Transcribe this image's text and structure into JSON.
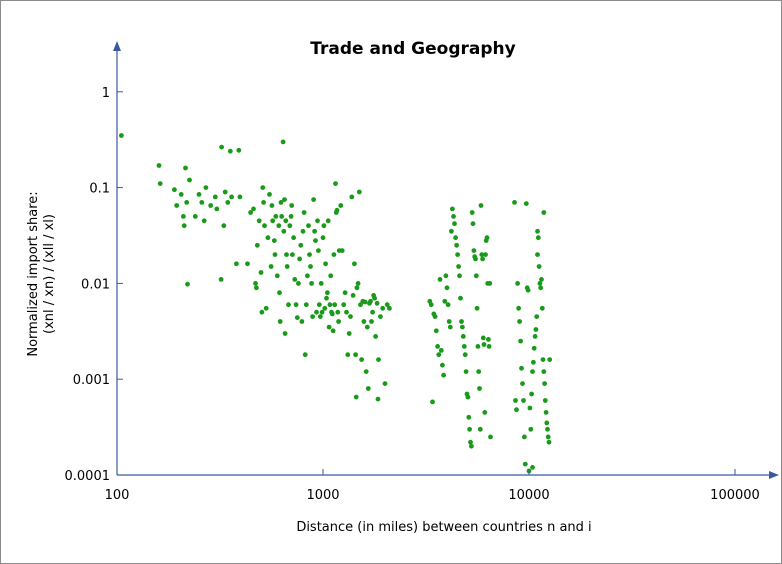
{
  "chart_data": {
    "type": "scatter",
    "title": "Trade and Geography",
    "xlabel": "Distance (in miles) between countries n and i",
    "ylabel_line1": "Normalized import share:",
    "ylabel_line2": "(xnl / xn) / (xll / xl)",
    "x_scale": "log",
    "y_scale": "log",
    "xlim": [
      100,
      200000
    ],
    "ylim": [
      0.0001,
      7
    ],
    "x_ticks": [
      {
        "value": 100,
        "label": "100"
      },
      {
        "value": 1000,
        "label": "1000"
      },
      {
        "value": 10000,
        "label": "10000"
      },
      {
        "value": 100000,
        "label": "100000"
      }
    ],
    "y_ticks": [
      {
        "value": 0.0001,
        "label": "0.0001"
      },
      {
        "value": 0.001,
        "label": "0.001"
      },
      {
        "value": 0.01,
        "label": "0.01"
      },
      {
        "value": 0.1,
        "label": "0.1"
      },
      {
        "value": 1,
        "label": "1"
      }
    ],
    "grid": false,
    "legend": "none",
    "colors": {
      "points": "#1a9a1a",
      "axis": "#3a5aa0"
    },
    "points": [
      [
        105,
        0.35
      ],
      [
        160,
        0.17
      ],
      [
        162,
        0.11
      ],
      [
        190,
        0.095
      ],
      [
        195,
        0.065
      ],
      [
        205,
        0.085
      ],
      [
        210,
        0.05
      ],
      [
        212,
        0.04
      ],
      [
        215,
        0.16
      ],
      [
        218,
        0.07
      ],
      [
        220,
        0.0098
      ],
      [
        225,
        0.12
      ],
      [
        240,
        0.05
      ],
      [
        250,
        0.085
      ],
      [
        258,
        0.07
      ],
      [
        265,
        0.045
      ],
      [
        270,
        0.1
      ],
      [
        285,
        0.065
      ],
      [
        300,
        0.08
      ],
      [
        305,
        0.06
      ],
      [
        320,
        0.011
      ],
      [
        322,
        0.265
      ],
      [
        330,
        0.04
      ],
      [
        335,
        0.09
      ],
      [
        345,
        0.07
      ],
      [
        355,
        0.24
      ],
      [
        360,
        0.08
      ],
      [
        380,
        0.016
      ],
      [
        390,
        0.245
      ],
      [
        395,
        0.08
      ],
      [
        430,
        0.016
      ],
      [
        445,
        0.055
      ],
      [
        460,
        0.06
      ],
      [
        470,
        0.01
      ],
      [
        475,
        0.009
      ],
      [
        480,
        0.025
      ],
      [
        490,
        0.045
      ],
      [
        500,
        0.013
      ],
      [
        505,
        0.005
      ],
      [
        510,
        0.1
      ],
      [
        515,
        0.07
      ],
      [
        520,
        0.04
      ],
      [
        530,
        0.0055
      ],
      [
        540,
        0.03
      ],
      [
        550,
        0.085
      ],
      [
        560,
        0.015
      ],
      [
        565,
        0.065
      ],
      [
        570,
        0.045
      ],
      [
        580,
        0.028
      ],
      [
        585,
        0.02
      ],
      [
        590,
        0.05
      ],
      [
        600,
        0.012
      ],
      [
        610,
        0.04
      ],
      [
        615,
        0.008
      ],
      [
        620,
        0.004
      ],
      [
        625,
        0.07
      ],
      [
        630,
        0.05
      ],
      [
        640,
        0.3
      ],
      [
        645,
        0.035
      ],
      [
        650,
        0.075
      ],
      [
        655,
        0.003
      ],
      [
        660,
        0.045
      ],
      [
        665,
        0.02
      ],
      [
        670,
        0.015
      ],
      [
        680,
        0.006
      ],
      [
        690,
        0.04
      ],
      [
        700,
        0.05
      ],
      [
        705,
        0.065
      ],
      [
        710,
        0.02
      ],
      [
        720,
        0.03
      ],
      [
        730,
        0.011
      ],
      [
        740,
        0.006
      ],
      [
        750,
        0.0044
      ],
      [
        760,
        0.01
      ],
      [
        770,
        0.018
      ],
      [
        780,
        0.025
      ],
      [
        790,
        0.004
      ],
      [
        800,
        0.035
      ],
      [
        810,
        0.055
      ],
      [
        820,
        0.0018
      ],
      [
        830,
        0.006
      ],
      [
        840,
        0.012
      ],
      [
        850,
        0.04
      ],
      [
        860,
        0.02
      ],
      [
        870,
        0.015
      ],
      [
        880,
        0.01
      ],
      [
        890,
        0.0045
      ],
      [
        900,
        0.075
      ],
      [
        910,
        0.035
      ],
      [
        920,
        0.028
      ],
      [
        930,
        0.005
      ],
      [
        940,
        0.045
      ],
      [
        950,
        0.022
      ],
      [
        960,
        0.006
      ],
      [
        970,
        0.0045
      ],
      [
        980,
        0.01
      ],
      [
        990,
        0.005
      ],
      [
        1000,
        0.03
      ],
      [
        1010,
        0.04
      ],
      [
        1020,
        0.0055
      ],
      [
        1030,
        0.016
      ],
      [
        1040,
        0.007
      ],
      [
        1050,
        0.008
      ],
      [
        1060,
        0.045
      ],
      [
        1070,
        0.0035
      ],
      [
        1080,
        0.006
      ],
      [
        1090,
        0.012
      ],
      [
        1100,
        0.005
      ],
      [
        1110,
        0.0048
      ],
      [
        1120,
        0.0032
      ],
      [
        1130,
        0.02
      ],
      [
        1140,
        0.006
      ],
      [
        1150,
        0.11
      ],
      [
        1160,
        0.055
      ],
      [
        1170,
        0.058
      ],
      [
        1180,
        0.005
      ],
      [
        1190,
        0.004
      ],
      [
        1200,
        0.022
      ],
      [
        1220,
        0.065
      ],
      [
        1240,
        0.022
      ],
      [
        1260,
        0.006
      ],
      [
        1280,
        0.008
      ],
      [
        1300,
        0.005
      ],
      [
        1320,
        0.0018
      ],
      [
        1340,
        0.003
      ],
      [
        1360,
        0.0045
      ],
      [
        1380,
        0.08
      ],
      [
        1400,
        0.0075
      ],
      [
        1420,
        0.016
      ],
      [
        1440,
        0.0018
      ],
      [
        1460,
        0.009
      ],
      [
        1480,
        0.01
      ],
      [
        1500,
        0.09
      ],
      [
        1520,
        0.006
      ],
      [
        1540,
        0.0016
      ],
      [
        1560,
        0.0065
      ],
      [
        1580,
        0.004
      ],
      [
        1600,
        0.0064
      ],
      [
        1620,
        0.0012
      ],
      [
        1640,
        0.0035
      ],
      [
        1660,
        0.0008
      ],
      [
        1680,
        0.0062
      ],
      [
        1700,
        0.0065
      ],
      [
        1720,
        0.004
      ],
      [
        1740,
        0.005
      ],
      [
        1760,
        0.0075
      ],
      [
        1780,
        0.007
      ],
      [
        1800,
        0.0028
      ],
      [
        1830,
        0.0062
      ],
      [
        1860,
        0.0016
      ],
      [
        1900,
        0.0045
      ],
      [
        1950,
        0.0055
      ],
      [
        2000,
        0.0009
      ],
      [
        2050,
        0.006
      ],
      [
        2100,
        0.0055
      ],
      [
        1450,
        0.00065
      ],
      [
        1850,
        0.00062
      ],
      [
        3300,
        0.0065
      ],
      [
        3350,
        0.006
      ],
      [
        3400,
        0.00058
      ],
      [
        3450,
        0.0048
      ],
      [
        3500,
        0.0045
      ],
      [
        3550,
        0.0032
      ],
      [
        3600,
        0.0022
      ],
      [
        3650,
        0.0018
      ],
      [
        3700,
        0.011
      ],
      [
        3750,
        0.002
      ],
      [
        3800,
        0.0014
      ],
      [
        3850,
        0.0011
      ],
      [
        3900,
        0.0065
      ],
      [
        3950,
        0.012
      ],
      [
        4000,
        0.009
      ],
      [
        4050,
        0.006
      ],
      [
        4100,
        0.004
      ],
      [
        4150,
        0.0035
      ],
      [
        4200,
        0.035
      ],
      [
        4250,
        0.06
      ],
      [
        4300,
        0.05
      ],
      [
        4350,
        0.042
      ],
      [
        4400,
        0.03
      ],
      [
        4450,
        0.025
      ],
      [
        4500,
        0.02
      ],
      [
        4550,
        0.015
      ],
      [
        4600,
        0.012
      ],
      [
        4650,
        0.007
      ],
      [
        4700,
        0.004
      ],
      [
        4750,
        0.0035
      ],
      [
        4800,
        0.0028
      ],
      [
        4850,
        0.0022
      ],
      [
        4900,
        0.0018
      ],
      [
        4950,
        0.0012
      ],
      [
        5000,
        0.0007
      ],
      [
        5050,
        0.00065
      ],
      [
        5100,
        0.0004
      ],
      [
        5150,
        0.0003
      ],
      [
        5200,
        0.00022
      ],
      [
        5250,
        0.0002
      ],
      [
        5300,
        0.055
      ],
      [
        5350,
        0.042
      ],
      [
        5400,
        0.022
      ],
      [
        5450,
        0.019
      ],
      [
        5500,
        0.018
      ],
      [
        5550,
        0.012
      ],
      [
        5600,
        0.0055
      ],
      [
        5650,
        0.0022
      ],
      [
        5700,
        0.0012
      ],
      [
        5750,
        0.0008
      ],
      [
        5800,
        0.0003
      ],
      [
        5850,
        0.065
      ],
      [
        5900,
        0.02
      ],
      [
        5950,
        0.018
      ],
      [
        6000,
        0.0027
      ],
      [
        6050,
        0.0023
      ],
      [
        6100,
        0.00045
      ],
      [
        6150,
        0.02
      ],
      [
        6200,
        0.028
      ],
      [
        6250,
        0.03
      ],
      [
        6300,
        0.01
      ],
      [
        6350,
        0.0026
      ],
      [
        6400,
        0.0022
      ],
      [
        6450,
        0.01
      ],
      [
        6500,
        0.00025
      ],
      [
        8500,
        0.07
      ],
      [
        8600,
        0.0006
      ],
      [
        8700,
        0.00048
      ],
      [
        8800,
        0.01
      ],
      [
        8900,
        0.0055
      ],
      [
        9000,
        0.004
      ],
      [
        9100,
        0.0025
      ],
      [
        9200,
        0.0013
      ],
      [
        9300,
        0.0009
      ],
      [
        9400,
        0.0006
      ],
      [
        9500,
        0.00025
      ],
      [
        9600,
        0.00013
      ],
      [
        9700,
        0.068
      ],
      [
        9800,
        0.009
      ],
      [
        9900,
        0.0085
      ],
      [
        10000,
        0.00011
      ],
      [
        10100,
        0.0005
      ],
      [
        10200,
        0.0003
      ],
      [
        10300,
        0.0007
      ],
      [
        10400,
        0.0012
      ],
      [
        10500,
        0.0015
      ],
      [
        10600,
        0.0021
      ],
      [
        10700,
        0.0028
      ],
      [
        10800,
        0.0033
      ],
      [
        10900,
        0.0045
      ],
      [
        11000,
        0.035
      ],
      [
        11100,
        0.03
      ],
      [
        11200,
        0.015
      ],
      [
        11300,
        0.01
      ],
      [
        11400,
        0.009
      ],
      [
        11500,
        0.011
      ],
      [
        11600,
        0.0055
      ],
      [
        11700,
        0.0016
      ],
      [
        11800,
        0.0012
      ],
      [
        11900,
        0.0009
      ],
      [
        12000,
        0.0006
      ],
      [
        12100,
        0.00045
      ],
      [
        12200,
        0.00035
      ],
      [
        12300,
        0.0003
      ],
      [
        12400,
        0.00025
      ],
      [
        12500,
        0.00022
      ],
      [
        12600,
        0.0016
      ],
      [
        11800,
        0.055
      ],
      [
        11000,
        0.02
      ],
      [
        10400,
        0.00012
      ]
    ]
  }
}
